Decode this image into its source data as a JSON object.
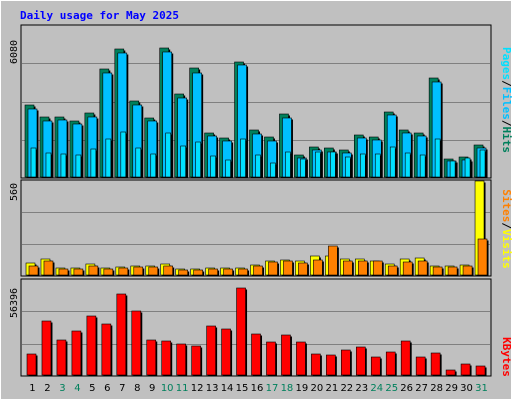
{
  "chart_data": [
    {
      "type": "bar",
      "title": "Daily usage for May 2025",
      "categories": [
        "1",
        "2",
        "3",
        "4",
        "5",
        "6",
        "7",
        "8",
        "9",
        "10",
        "11",
        "12",
        "13",
        "14",
        "15",
        "16",
        "17",
        "18",
        "19",
        "20",
        "21",
        "22",
        "23",
        "24",
        "25",
        "26",
        "27",
        "28",
        "29",
        "30",
        "31"
      ],
      "weekend_days": [
        "3",
        "4",
        "10",
        "11",
        "17",
        "18",
        "24",
        "25",
        "31"
      ],
      "ylabel": "6080",
      "ylim": [
        0,
        6080
      ],
      "legend": [
        "Pages",
        "Files",
        "Hits"
      ],
      "series": [
        {
          "name": "Hits",
          "values": [
            2880,
            2410,
            2400,
            2270,
            2570,
            4350,
            5140,
            3050,
            2390,
            5180,
            3330,
            4380,
            1790,
            1570,
            4640,
            1880,
            1600,
            2530,
            870,
            1220,
            1150,
            1080,
            1700,
            1610,
            2620,
            1890,
            1780,
            3980,
            740,
            810,
            1280
          ]
        },
        {
          "name": "Files",
          "values": [
            2750,
            2270,
            2280,
            2150,
            2410,
            4190,
            5000,
            2910,
            2270,
            5050,
            3190,
            4200,
            1670,
            1440,
            4500,
            1740,
            1460,
            2390,
            750,
            1090,
            1020,
            960,
            1570,
            1480,
            2480,
            1760,
            1660,
            3840,
            640,
            700,
            1150
          ]
        },
        {
          "name": "Pages",
          "values": [
            1180,
            960,
            910,
            870,
            1110,
            1550,
            1830,
            1170,
            930,
            1760,
            1230,
            1420,
            860,
            670,
            1540,
            870,
            560,
            1000,
            720,
            1020,
            990,
            820,
            940,
            910,
            1190,
            950,
            900,
            1510,
            640,
            760,
            1070
          ]
        }
      ]
    },
    {
      "type": "bar",
      "ylabel": "560",
      "ylim": [
        0,
        560
      ],
      "legend": [
        "Sites",
        "Visits"
      ],
      "series": [
        {
          "name": "Visits",
          "values": [
            72,
            96,
            40,
            43,
            63,
            40,
            45,
            53,
            53,
            63,
            36,
            36,
            43,
            40,
            43,
            60,
            82,
            90,
            82,
            113,
            113,
            96,
            93,
            86,
            63,
            96,
            102,
            53,
            52,
            60,
            560
          ]
        },
        {
          "name": "Sites",
          "values": [
            56,
            85,
            35,
            38,
            56,
            35,
            40,
            47,
            46,
            56,
            32,
            32,
            38,
            35,
            38,
            55,
            75,
            83,
            73,
            90,
            170,
            86,
            86,
            85,
            56,
            80,
            86,
            45,
            46,
            55,
            212
          ]
        }
      ]
    },
    {
      "type": "bar",
      "ylabel": "56396",
      "ylim": [
        0,
        56396
      ],
      "legend": [
        "KBytes"
      ],
      "series": [
        {
          "name": "KBytes",
          "values": [
            12500,
            32000,
            21000,
            26000,
            35000,
            30000,
            47800,
            38000,
            21000,
            20000,
            18500,
            17000,
            29000,
            27500,
            51500,
            24500,
            19600,
            23800,
            19700,
            12500,
            11600,
            15000,
            16600,
            10900,
            13400,
            20400,
            10700,
            13200,
            2700,
            6500,
            5500
          ]
        }
      ]
    }
  ],
  "colors": {
    "hits": "#00805c",
    "files": "#00c0ff",
    "pages": "#00e0ff",
    "visits": "#ffff00",
    "sites": "#ff8000",
    "kbytes": "#ff0000",
    "title": "#0000ff",
    "weekday_label": "#000000",
    "weekend_label": "#00805c",
    "background": "#c0c0c0",
    "gridline": "#808080"
  },
  "sep": "/"
}
